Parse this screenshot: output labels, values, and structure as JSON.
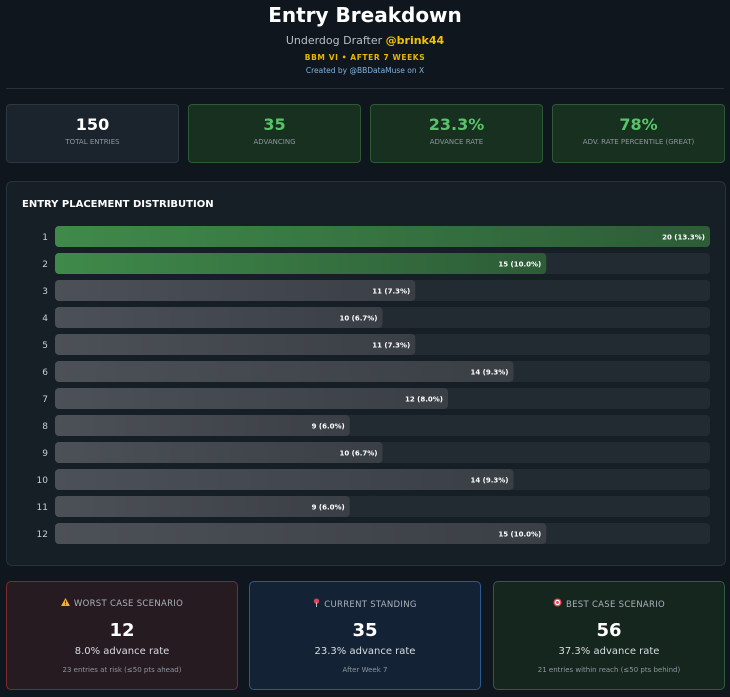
{
  "header": {
    "title": "Entry Breakdown",
    "subtitle_prefix": "Underdog Drafter",
    "handle": "@brink44",
    "season": "BBM VI • AFTER 7 WEEKS",
    "credit": "Created by @BBDataMuse on X"
  },
  "stats": [
    {
      "value": "150",
      "label": "TOTAL ENTRIES",
      "style": "neutral"
    },
    {
      "value": "35",
      "label": "ADVANCING",
      "style": "green"
    },
    {
      "value": "23.3%",
      "label": "ADVANCE RATE",
      "style": "green"
    },
    {
      "value": "78%",
      "label": "ADV. RATE PERCENTILE (GREAT)",
      "style": "green"
    }
  ],
  "chart_data": {
    "type": "bar",
    "orientation": "horizontal",
    "title": "ENTRY PLACEMENT DISTRIBUTION",
    "categories": [
      "1",
      "2",
      "3",
      "4",
      "5",
      "6",
      "7",
      "8",
      "9",
      "10",
      "11",
      "12"
    ],
    "values": [
      20,
      15,
      11,
      10,
      11,
      14,
      12,
      9,
      10,
      14,
      9,
      15
    ],
    "data_labels": [
      "20 (13.3%)",
      "15 (10.0%)",
      "11 (7.3%)",
      "10 (6.7%)",
      "11 (7.3%)",
      "14 (9.3%)",
      "12 (8.0%)",
      "9 (6.0%)",
      "10 (6.7%)",
      "14 (9.3%)",
      "9 (6.0%)",
      "15 (10.0%)"
    ],
    "xlim": [
      0,
      20
    ],
    "highlighted_categories": [
      "1",
      "2"
    ],
    "colors": {
      "highlight": "#3f8a4a",
      "highlight_end": "#2d5c37",
      "normal": "#4c5157",
      "normal_end": "#3a3f45",
      "track": "#222a32"
    }
  },
  "scenarios": {
    "worst": {
      "icon": "warning-icon",
      "heading": "WORST CASE SCENARIO",
      "value": "12",
      "rate": "8.0% advance rate",
      "note": "23 entries at risk (≤50 pts ahead)"
    },
    "current": {
      "icon": "pin-icon",
      "heading": "CURRENT STANDING",
      "value": "35",
      "rate": "23.3% advance rate",
      "note": "After Week 7"
    },
    "best": {
      "icon": "target-icon",
      "heading": "BEST CASE SCENARIO",
      "value": "56",
      "rate": "37.3% advance rate",
      "note": "21 entries within reach (≤50 pts behind)"
    }
  }
}
